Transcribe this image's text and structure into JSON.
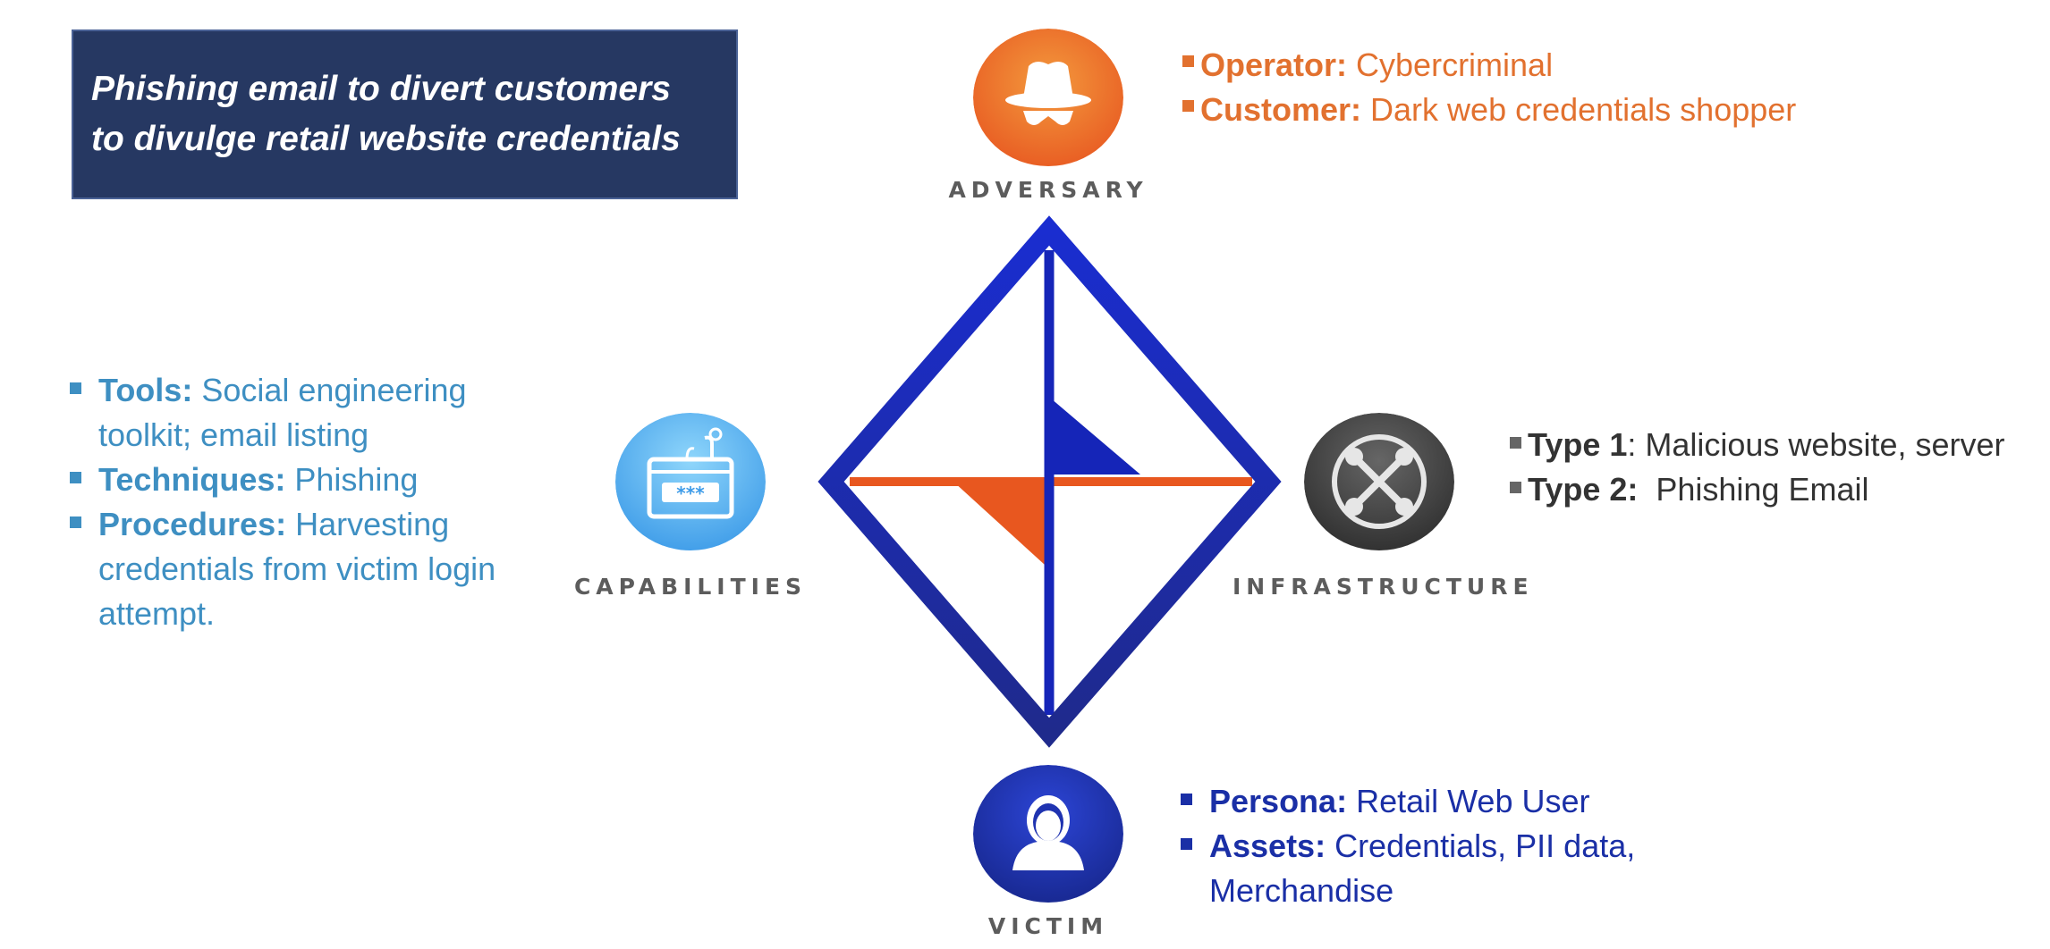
{
  "title": {
    "line1": "Phishing email to divert customers",
    "line2": "to divulge retail website credentials"
  },
  "colors": {
    "title_bg": "#263862",
    "adversary": "#e2712f",
    "capabilities": "#3e8fc2",
    "infrastructure": "#333333",
    "victim": "#1a2fa6",
    "diamond": "#1525b8",
    "accent_orange": "#e8571f"
  },
  "nodes": {
    "adversary": {
      "label": "ADVERSARY",
      "icon": "hat-spy-icon"
    },
    "capabilities": {
      "label": "CAPABILITIES",
      "icon": "password-phish-icon"
    },
    "infrastructure": {
      "label": "INFRASTRUCTURE",
      "icon": "network-arrows-icon"
    },
    "victim": {
      "label": "VICTIM",
      "icon": "user-avatar-icon"
    }
  },
  "adversary_items": [
    {
      "label": "Operator:",
      "text": " Cybercriminal"
    },
    {
      "label": "Customer:",
      "text": " Dark web credentials shopper"
    }
  ],
  "capabilities_items": [
    {
      "label": "Tools:",
      "text": " Social engineering",
      "text2": "toolkit; email listing"
    },
    {
      "label": "Techniques:",
      "text": " Phishing"
    },
    {
      "label": "Procedures:",
      "text": " Harvesting",
      "text2": "credentials from victim login",
      "text3": "attempt."
    }
  ],
  "infrastructure_items": [
    {
      "label": "Type 1",
      "text": ": Malicious website, server"
    },
    {
      "label": "Type 2:",
      "text": "  Phishing Email"
    }
  ],
  "victim_items": [
    {
      "label": "Persona:",
      "text": " Retail Web User"
    },
    {
      "label": "Assets:",
      "text": " Credentials, PII data,",
      "text2": "Merchandise"
    }
  ]
}
